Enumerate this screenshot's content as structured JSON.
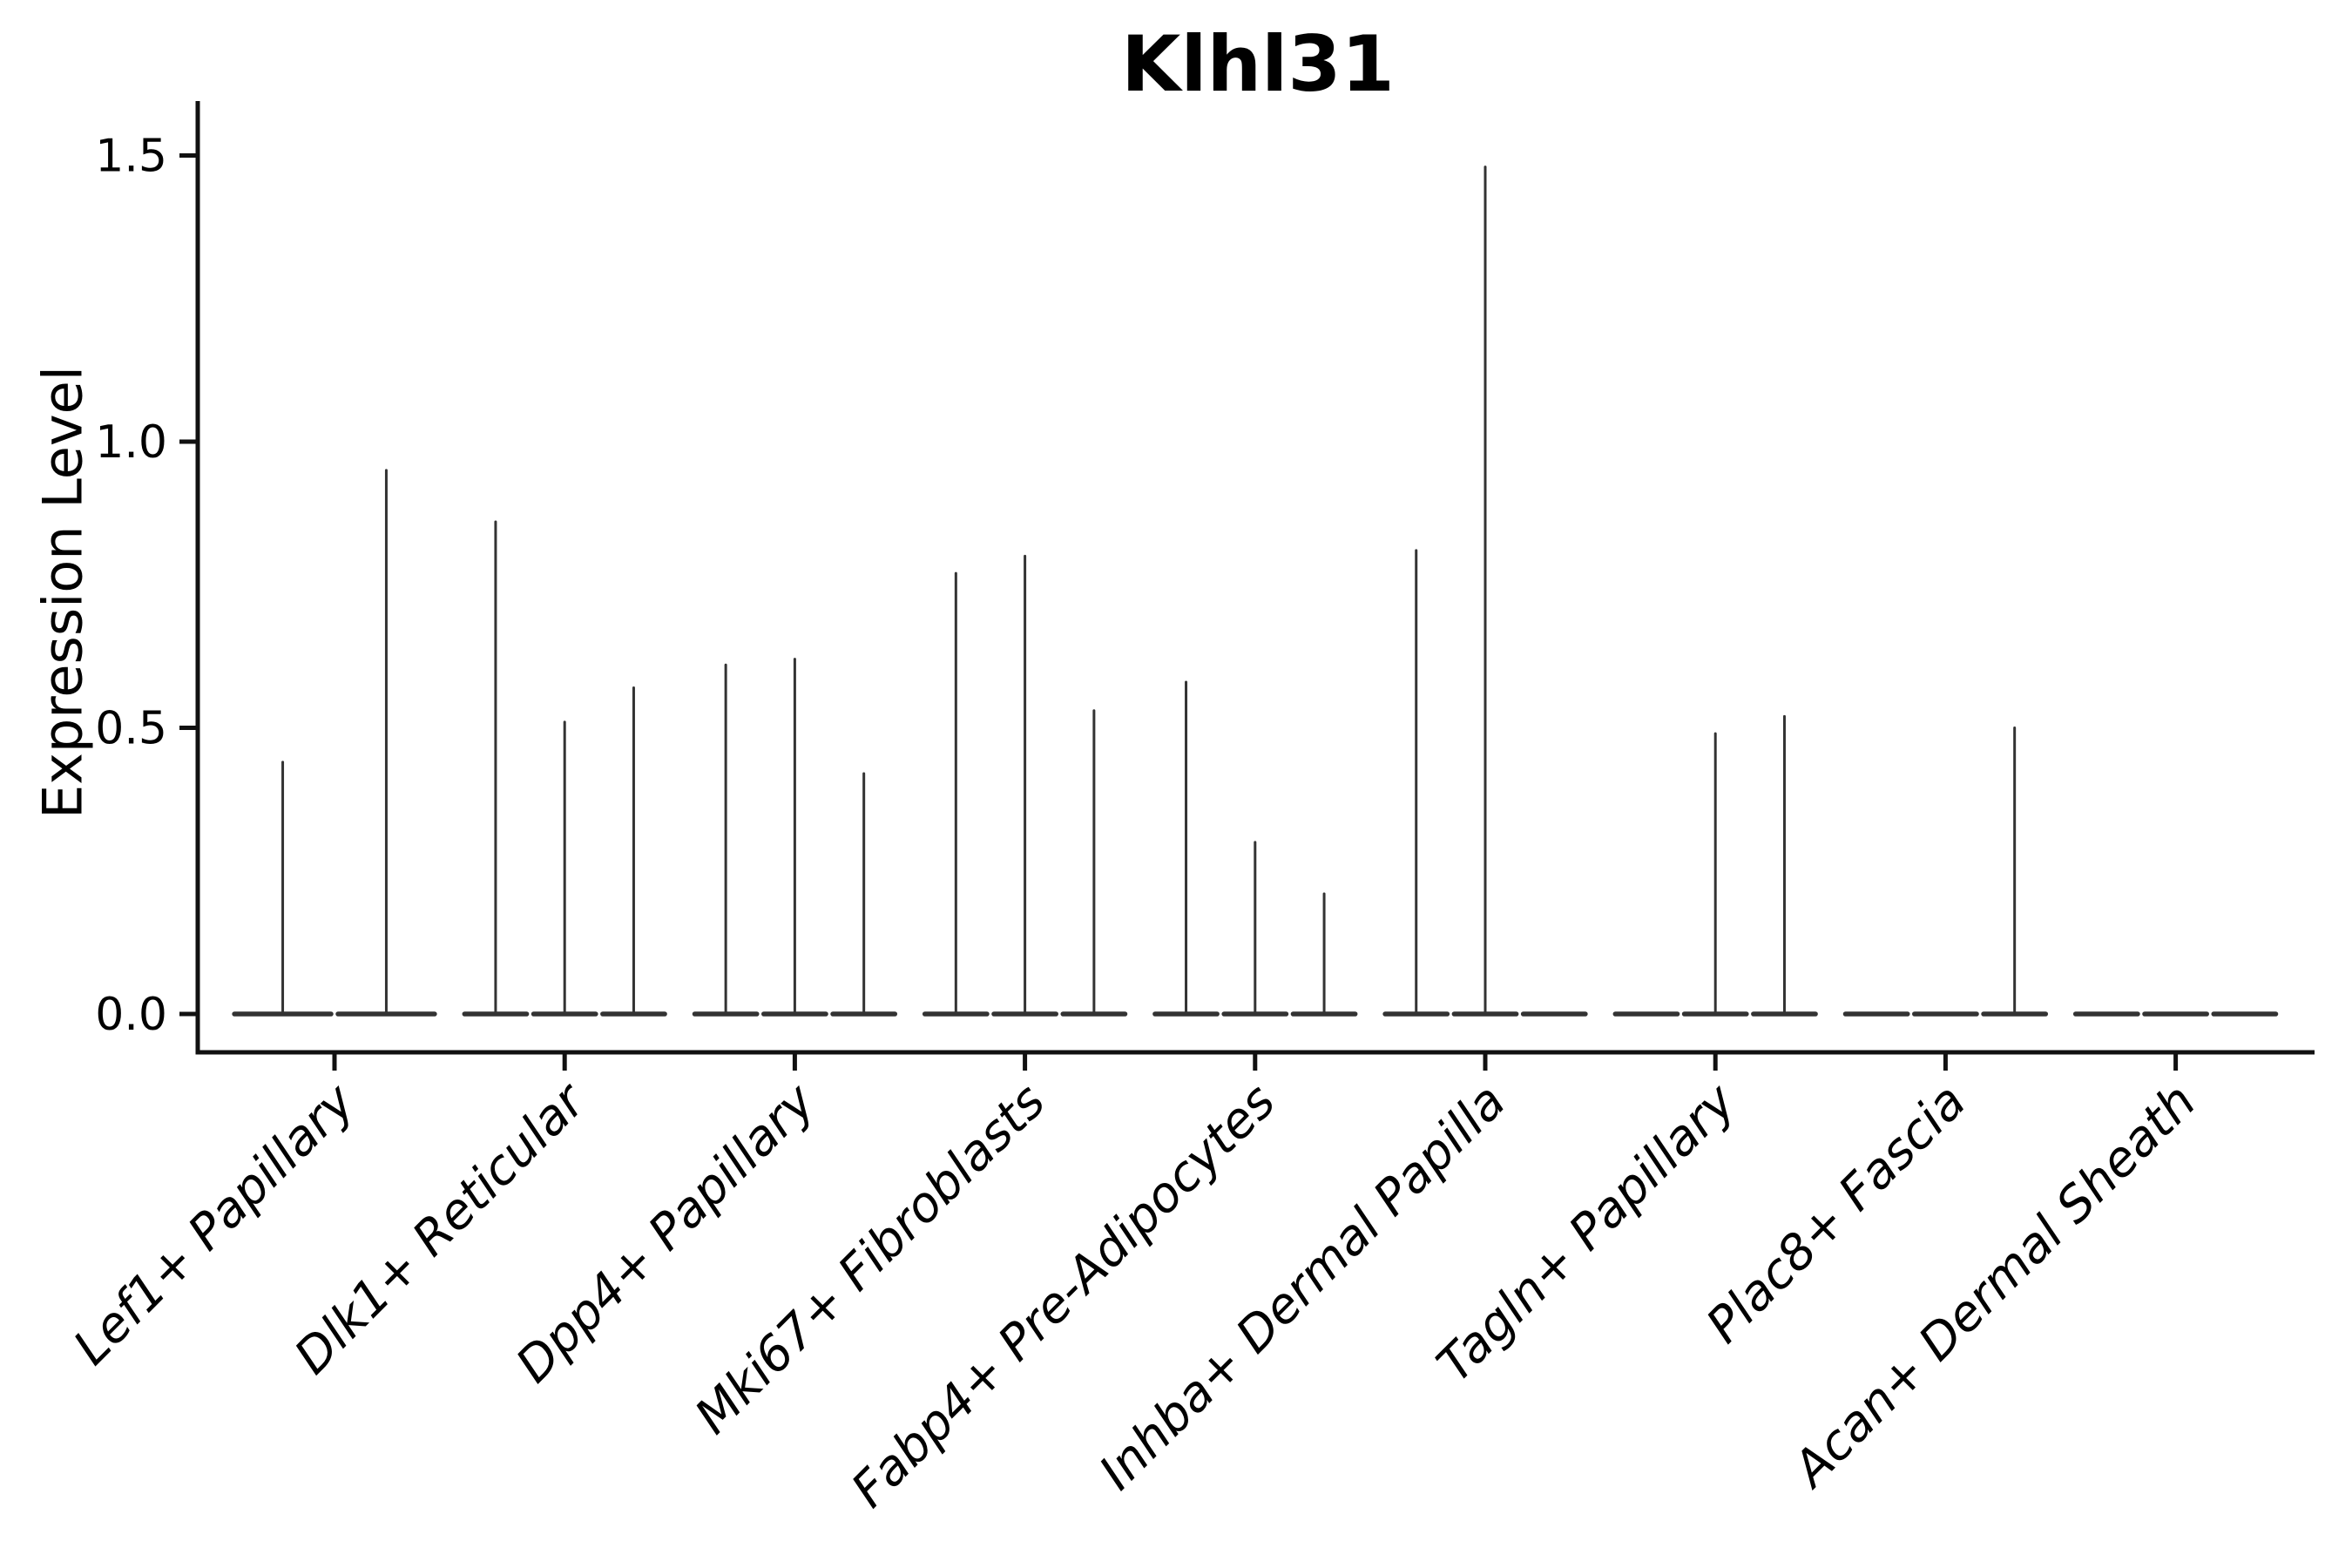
{
  "chart_data": {
    "type": "violin",
    "title": "Klhl31",
    "xlabel": "",
    "ylabel": "Expression Level",
    "ytick_labels": [
      "0.0",
      "0.5",
      "1.0",
      "1.5"
    ],
    "ytick_values": [
      0.0,
      0.5,
      1.0,
      1.5
    ],
    "ylim": [
      -0.05,
      1.6
    ],
    "grid": false,
    "legend": "none",
    "categories": [
      "Lef1+ Papillary",
      "Dlk1+ Reticular",
      "Dpp4+ Papillary",
      "Mki67+ Fibroblasts",
      "Fabp4+ Pre-Adipocytes",
      "Inhba+ Dermal Papilla",
      "Tagln+ Papillary",
      "Plac8+ Fascia",
      "Acan+ Dermal Sheath"
    ],
    "violin_max_expression": [
      [
        0.44,
        0.95
      ],
      [
        0.86,
        0.51,
        0.57
      ],
      [
        0.61,
        0.62,
        0.42
      ],
      [
        0.77,
        0.8,
        0.53
      ],
      [
        0.58,
        0.3,
        0.21
      ],
      [
        0.81,
        1.48,
        0
      ],
      [
        0,
        0.49,
        0.52
      ],
      [
        0,
        0,
        0.5
      ],
      [
        0,
        0,
        0
      ]
    ],
    "colors": {
      "violin_stroke": "#333333",
      "axis_spine": "#111111",
      "text": "#000000",
      "background": "#ffffff"
    }
  }
}
